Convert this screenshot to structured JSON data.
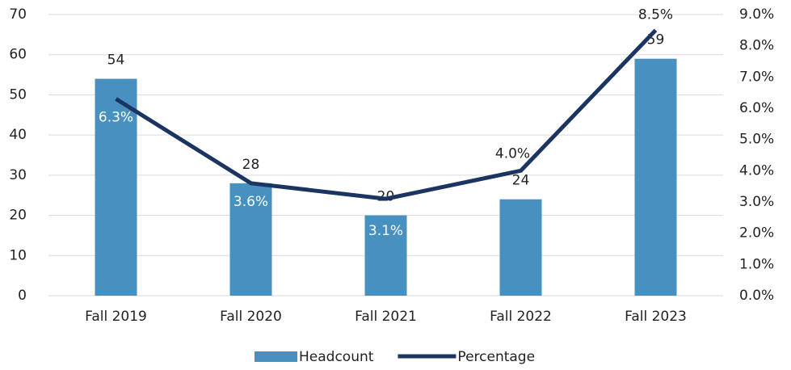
{
  "chart_data": {
    "type": "combo",
    "categories": [
      "Fall 2019",
      "Fall 2020",
      "Fall 2021",
      "Fall 2022",
      "Fall 2023"
    ],
    "series": [
      {
        "name": "Headcount",
        "type": "bar",
        "color": "#4691c0",
        "values": [
          54,
          28,
          20,
          24,
          59
        ]
      },
      {
        "name": "Percentage",
        "type": "line",
        "axis": "y2",
        "color": "#1c3461",
        "values": [
          6.3,
          3.6,
          3.1,
          4.0,
          8.5
        ],
        "value_labels": [
          "6.3%",
          "3.6%",
          "3.1%",
          "4.0%",
          "8.5%"
        ]
      }
    ],
    "ylim": [
      0,
      70
    ],
    "yticks": [
      0,
      10,
      20,
      30,
      40,
      50,
      60,
      70
    ],
    "y2lim": [
      0,
      9
    ],
    "y2ticks": [
      {
        "value": 0,
        "label": "0.0%"
      },
      {
        "value": 1,
        "label": "1.0%"
      },
      {
        "value": 2,
        "label": "2.0%"
      },
      {
        "value": 3,
        "label": "3.0%"
      },
      {
        "value": 4,
        "label": "4.0%"
      },
      {
        "value": 5,
        "label": "5.0%"
      },
      {
        "value": 6,
        "label": "6.0%"
      },
      {
        "value": 7,
        "label": "7.0%"
      },
      {
        "value": 8,
        "label": "8.0%"
      },
      {
        "value": 9,
        "label": "9.0%"
      }
    ],
    "grid": true,
    "legend": "bottom"
  }
}
